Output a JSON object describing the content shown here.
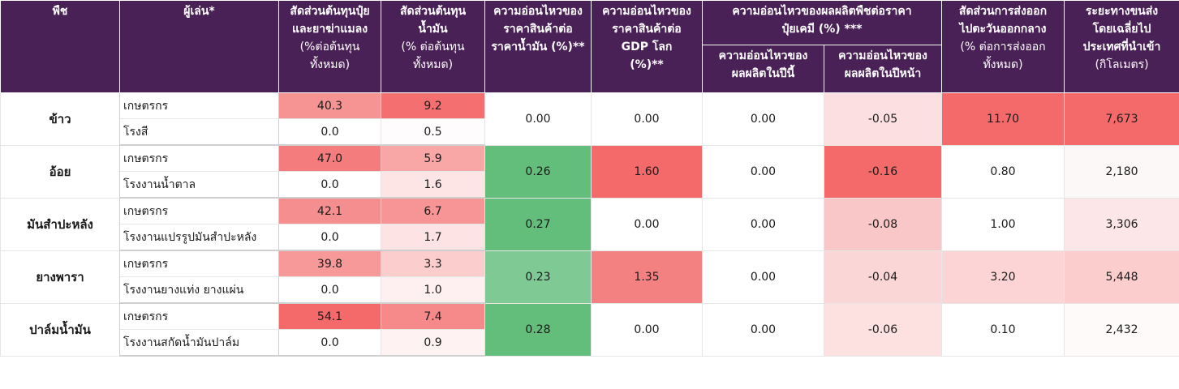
{
  "header": {
    "crop": "พืช",
    "player": "ผู้เล่น*",
    "fert_cost": [
      "สัดส่วนต้นทุนปุ๋ย",
      "และยาฆ่าแมลง",
      "(%ต่อต้นทุน",
      "ทั้งหมด)"
    ],
    "fuel_cost": [
      "สัดส่วนต้นทุน",
      "น้ำมัน",
      "(% ต่อต้นทุน",
      "ทั้งหมด)"
    ],
    "oil_sens": [
      "ความอ่อนไหวของ",
      "ราคาสินค้าต่อ",
      "ราคาน้ำมัน (%)**"
    ],
    "gdp_sens": [
      "ความอ่อนไหวของ",
      "ราคาสินค้าต่อ",
      "GDP โลก",
      "(%)**"
    ],
    "fert_sens_group": [
      "ความอ่อนไหวของผลผลิตพืชต่อราคา",
      "ปุ๋ยเคมี (%) ***"
    ],
    "fert_sens_this_year": [
      "ความอ่อนไหวของ",
      "ผลผลิตในปีนี้"
    ],
    "fert_sens_next_year": [
      "ความอ่อนไหวของ",
      "ผลผลิตในปีหน้า"
    ],
    "export_share": [
      "สัดส่วนการส่งออก",
      "ไปตะวันออกกลาง",
      "(% ต่อการส่งออก",
      "ทั้งหมด)"
    ],
    "distance": [
      "ระยะทางขนส่ง",
      "โดยเฉลี่ยไป",
      "ประเทศที่นำเข้า",
      "(กิโลเมตร)"
    ]
  },
  "groups": [
    {
      "crop": "ข้าว",
      "rows": [
        {
          "player": "เกษตรกร",
          "fert_cost": "40.3",
          "fuel_cost": "9.2"
        },
        {
          "player": "โรงสี",
          "fert_cost": "0.0",
          "fuel_cost": "0.5"
        }
      ],
      "oil_sens": "0.00",
      "gdp_sens": "0.00",
      "this_year": "0.00",
      "next_year": "-0.05",
      "export_share": "11.70",
      "distance": "7,673"
    },
    {
      "crop": "อ้อย",
      "rows": [
        {
          "player": "เกษตรกร",
          "fert_cost": "47.0",
          "fuel_cost": "5.9"
        },
        {
          "player": "โรงงานน้ำตาล",
          "fert_cost": "0.0",
          "fuel_cost": "1.6"
        }
      ],
      "oil_sens": "0.26",
      "gdp_sens": "1.60",
      "this_year": "0.00",
      "next_year": "-0.16",
      "export_share": "0.80",
      "distance": "2,180"
    },
    {
      "crop": "มันสำปะหลัง",
      "rows": [
        {
          "player": "เกษตรกร",
          "fert_cost": "42.1",
          "fuel_cost": "6.7"
        },
        {
          "player": "โรงงานแปรรูปมันสำปะหลัง",
          "fert_cost": "0.0",
          "fuel_cost": "1.7"
        }
      ],
      "oil_sens": "0.27",
      "gdp_sens": "0.00",
      "this_year": "0.00",
      "next_year": "-0.08",
      "export_share": "1.00",
      "distance": "3,306"
    },
    {
      "crop": "ยางพารา",
      "rows": [
        {
          "player": "เกษตรกร",
          "fert_cost": "39.8",
          "fuel_cost": "3.3"
        },
        {
          "player": "โรงงานยางแท่ง ยางแผ่น",
          "fert_cost": "0.0",
          "fuel_cost": "1.0"
        }
      ],
      "oil_sens": "0.23",
      "gdp_sens": "1.35",
      "this_year": "0.00",
      "next_year": "-0.04",
      "export_share": "3.20",
      "distance": "5,448"
    },
    {
      "crop": "ปาล์มน้ำมัน",
      "rows": [
        {
          "player": "เกษตรกร",
          "fert_cost": "54.1",
          "fuel_cost": "7.4"
        },
        {
          "player": "โรงงานสกัดน้ำมันปาล์ม",
          "fert_cost": "0.0",
          "fuel_cost": "0.9"
        }
      ],
      "oil_sens": "0.28",
      "gdp_sens": "0.00",
      "this_year": "0.00",
      "next_year": "-0.06",
      "export_share": "0.10",
      "distance": "2,432"
    }
  ],
  "cell_colors": {
    "groups": [
      {
        "fert": [
          "#f69494",
          "#ffffff"
        ],
        "fuel": [
          "#f46f70",
          "#fefcfc"
        ],
        "oil": "#ffffff",
        "gdp": "#ffffff",
        "this_year": "#ffffff",
        "next_year": "#fce0e1",
        "export": "#f46a6b",
        "distance": "#f46a6b"
      },
      {
        "fert": [
          "#f47c7d",
          "#ffffff"
        ],
        "fuel": [
          "#f9a6a7",
          "#fde4e5"
        ],
        "oil": "#63be7b",
        "gdp": "#f46a6b",
        "this_year": "#ffffff",
        "next_year": "#f46a6b",
        "export": "#ffffff",
        "distance": "#fdf8f8"
      },
      {
        "fert": [
          "#f58e8f",
          "#ffffff"
        ],
        "fuel": [
          "#f79596",
          "#fde3e4"
        ],
        "oil": "#63be7b",
        "gdp": "#ffffff",
        "this_year": "#ffffff",
        "next_year": "#f9c7c8",
        "export": "#ffffff",
        "distance": "#fde6e7"
      },
      {
        "fert": [
          "#f79899",
          "#ffffff"
        ],
        "fuel": [
          "#fbcdcd",
          "#fef0f0"
        ],
        "oil": "#7fca94",
        "gdp": "#f48182",
        "this_year": "#ffffff",
        "next_year": "#fbd6d7",
        "export": "#fcd4d5",
        "distance": "#fbcdcd"
      },
      {
        "fert": [
          "#f46a6b",
          "#ffffff"
        ],
        "fuel": [
          "#f6898a",
          "#fef2f2"
        ],
        "oil": "#63be7b",
        "gdp": "#ffffff",
        "this_year": "#ffffff",
        "next_year": "#fde0e0",
        "export": "#ffffff",
        "distance": "#fefafa"
      }
    ]
  }
}
